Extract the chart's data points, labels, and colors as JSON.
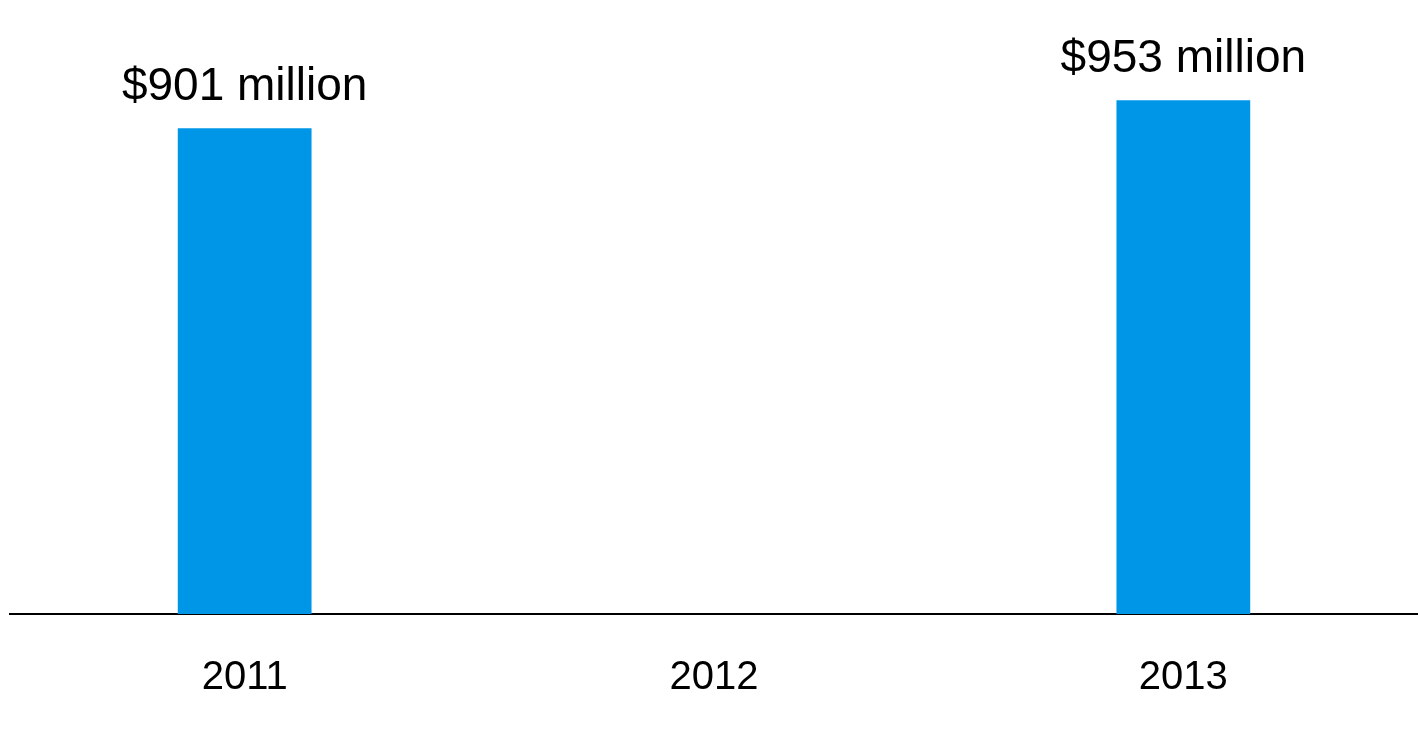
{
  "chart_data": {
    "type": "bar",
    "categories": [
      "2011",
      "2012",
      "2013"
    ],
    "values": [
      901,
      null,
      953
    ],
    "value_labels": [
      "$901 million",
      null,
      "$953 million"
    ],
    "color": "#0096e8",
    "grid": false,
    "legend": false,
    "tick_labels": "x"
  }
}
